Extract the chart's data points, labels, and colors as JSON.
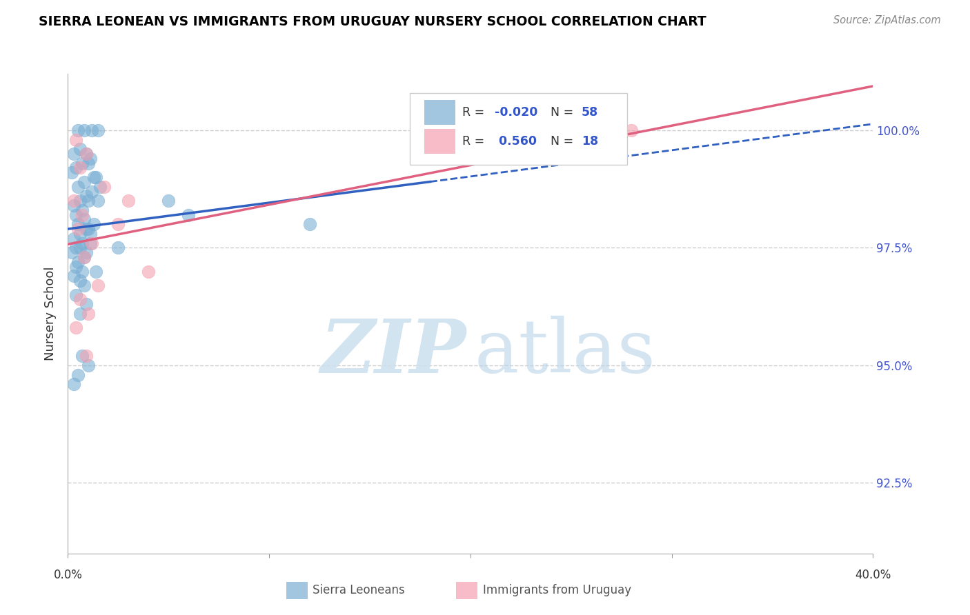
{
  "title": "SIERRA LEONEAN VS IMMIGRANTS FROM URUGUAY NURSERY SCHOOL CORRELATION CHART",
  "source": "Source: ZipAtlas.com",
  "ylabel": "Nursery School",
  "yticks": [
    92.5,
    95.0,
    97.5,
    100.0
  ],
  "ytick_labels": [
    "92.5%",
    "95.0%",
    "97.5%",
    "100.0%"
  ],
  "xmin": 0.0,
  "xmax": 40.0,
  "ymin": 91.0,
  "ymax": 101.2,
  "R_blue": -0.02,
  "N_blue": 58,
  "R_pink": 0.56,
  "N_pink": 18,
  "blue_color": "#7bafd4",
  "pink_color": "#f4a0b0",
  "blue_line_color": "#3060c0",
  "pink_line_color": "#e06080",
  "legend_label_blue": "Sierra Leoneans",
  "legend_label_pink": "Immigrants from Uruguay",
  "blue_scatter_x": [
    0.5,
    0.8,
    1.2,
    1.5,
    1.0,
    0.3,
    0.6,
    0.9,
    1.1,
    0.7,
    0.4,
    0.2,
    1.3,
    0.8,
    0.5,
    1.6,
    0.9,
    1.4,
    0.6,
    0.3,
    0.7,
    1.0,
    0.4,
    1.2,
    0.8,
    0.5,
    0.9,
    1.1,
    0.6,
    0.3,
    0.7,
    1.5,
    0.4,
    0.2,
    1.0,
    0.8,
    0.6,
    0.9,
    1.3,
    0.5,
    0.4,
    5.0,
    0.7,
    0.3,
    1.1,
    0.6,
    2.5,
    0.8,
    0.4,
    12.0,
    1.0,
    0.5,
    0.3,
    6.0,
    0.7,
    1.4,
    0.9,
    0.6
  ],
  "blue_scatter_y": [
    100.0,
    100.0,
    100.0,
    100.0,
    99.3,
    99.5,
    99.6,
    99.5,
    99.4,
    99.3,
    99.2,
    99.1,
    99.0,
    98.9,
    98.8,
    98.8,
    98.6,
    99.0,
    98.5,
    98.4,
    98.3,
    98.5,
    98.2,
    98.7,
    98.1,
    98.0,
    97.9,
    97.8,
    97.8,
    97.7,
    97.6,
    98.5,
    97.5,
    97.4,
    97.9,
    97.3,
    97.5,
    97.4,
    98.0,
    97.2,
    97.1,
    98.5,
    97.0,
    96.9,
    97.6,
    96.8,
    97.5,
    96.7,
    96.5,
    98.0,
    95.0,
    94.8,
    94.6,
    98.2,
    95.2,
    97.0,
    96.3,
    96.1
  ],
  "pink_scatter_x": [
    0.4,
    0.9,
    0.6,
    1.8,
    0.3,
    0.7,
    3.0,
    0.5,
    1.2,
    2.5,
    0.8,
    4.0,
    1.5,
    0.6,
    1.0,
    0.4,
    28.0,
    0.9
  ],
  "pink_scatter_y": [
    99.8,
    99.5,
    99.2,
    98.8,
    98.5,
    98.2,
    98.5,
    97.9,
    97.6,
    98.0,
    97.3,
    97.0,
    96.7,
    96.4,
    96.1,
    95.8,
    100.0,
    95.2
  ]
}
